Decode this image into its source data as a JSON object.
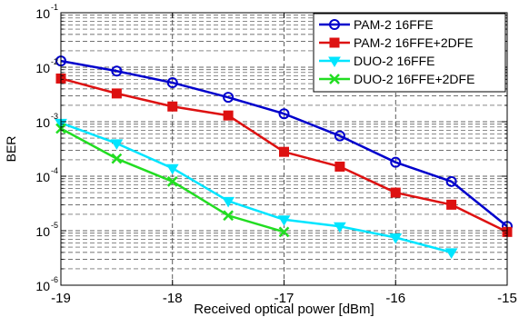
{
  "chart_data": {
    "type": "line",
    "xlabel": "Received optical power [dBm]",
    "ylabel": "BER",
    "xlim": [
      -19,
      -15
    ],
    "ylim": [
      1e-06,
      0.1
    ],
    "yscale": "log",
    "grid": true,
    "legend_position": "top-right",
    "x_ticks": [
      "-19",
      "-18",
      "-17",
      "-16",
      "-15"
    ],
    "y_ticks": [
      {
        "base": "10",
        "exp": "-6"
      },
      {
        "base": "10",
        "exp": "-5"
      },
      {
        "base": "10",
        "exp": "-4"
      },
      {
        "base": "10",
        "exp": "-3"
      },
      {
        "base": "10",
        "exp": "-2"
      },
      {
        "base": "10",
        "exp": "-1"
      }
    ],
    "series": [
      {
        "name": "PAM-2 16FFE",
        "color": "#0000cc",
        "marker": "circle",
        "x": [
          -19,
          -18.5,
          -18,
          -17.5,
          -17,
          -16.5,
          -16,
          -15.5,
          -15
        ],
        "y": [
          0.013,
          0.0085,
          0.0052,
          0.0028,
          0.0014,
          0.00055,
          0.00018,
          8e-05,
          1.2e-05
        ]
      },
      {
        "name": "PAM-2 16FFE+2DFE",
        "color": "#dd1111",
        "marker": "square",
        "x": [
          -19,
          -18.5,
          -18,
          -17.5,
          -17,
          -16.5,
          -16,
          -15.5,
          -15
        ],
        "y": [
          0.0062,
          0.0033,
          0.0019,
          0.0013,
          0.00028,
          0.00015,
          5e-05,
          3e-05,
          9.5e-06
        ]
      },
      {
        "name": "DUO-2 16FFE",
        "color": "#00e5ff",
        "marker": "triangle-down",
        "x": [
          -19,
          -18.5,
          -18,
          -17.5,
          -17,
          -16.5,
          -16,
          -15.5
        ],
        "y": [
          0.00095,
          0.0004,
          0.00014,
          3.5e-05,
          1.6e-05,
          1.2e-05,
          7.5e-06,
          4e-06
        ]
      },
      {
        "name": "DUO-2 16FFE+2DFE",
        "color": "#22dd22",
        "marker": "x",
        "x": [
          -19,
          -18.5,
          -18,
          -17.5,
          -17
        ],
        "y": [
          0.00075,
          0.00021,
          8e-05,
          1.9e-05,
          9.5e-06
        ]
      }
    ]
  }
}
